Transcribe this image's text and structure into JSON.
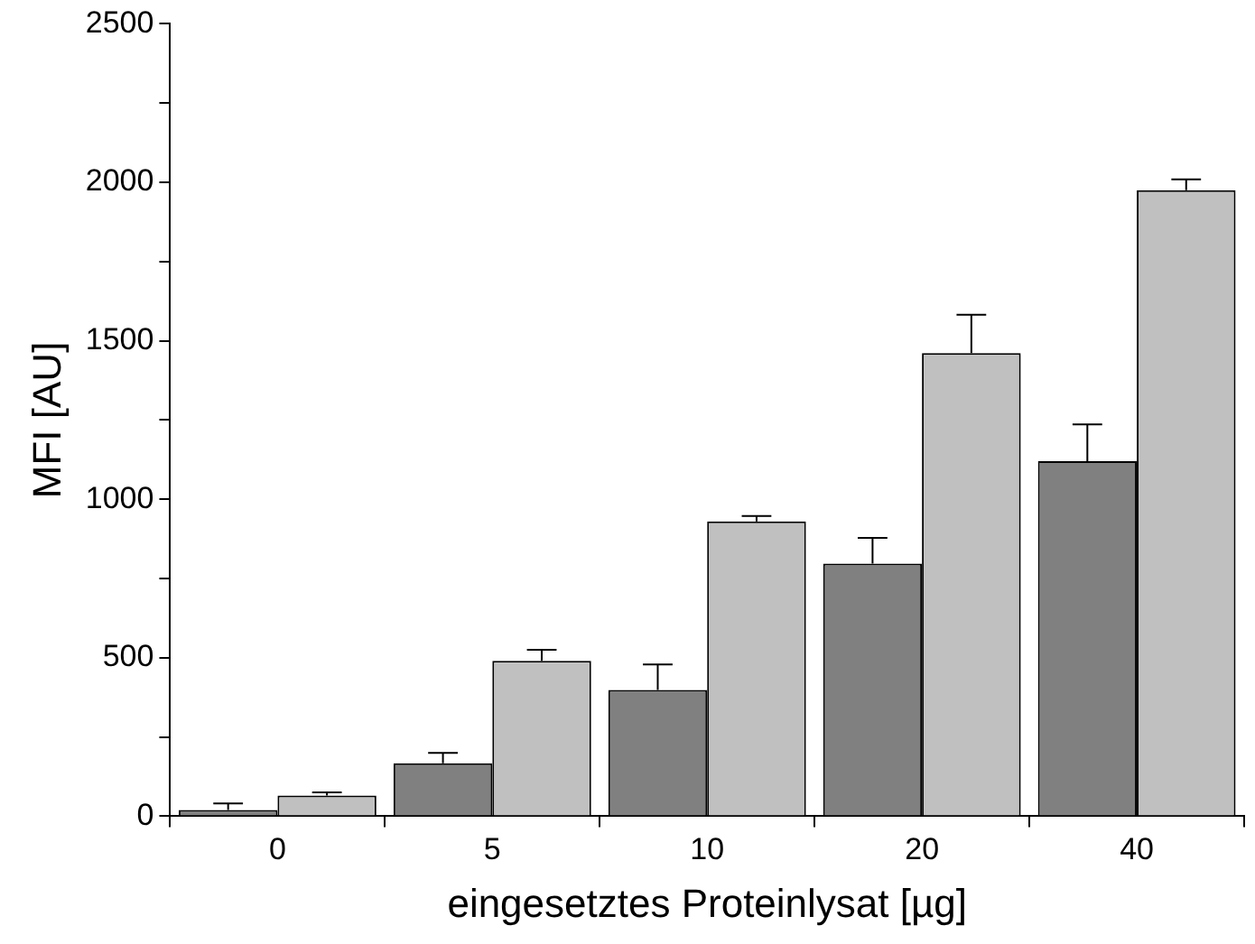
{
  "chart_data": {
    "type": "bar",
    "xlabel": "eingesetztes Proteinlysat [µg]",
    "ylabel": "MFI [AU]",
    "categories": [
      "0",
      "5",
      "10",
      "20",
      "40"
    ],
    "series": [
      {
        "color": "#808080",
        "values": [
          20,
          167,
          398,
          797,
          1120
        ],
        "errors": [
          [
            20,
            40
          ],
          [
            167,
            200
          ],
          [
            398,
            479
          ],
          [
            797,
            878
          ],
          [
            1120,
            1236
          ]
        ]
      },
      {
        "color": "#c0c0c0",
        "values": [
          65,
          490,
          930,
          1461,
          1975
        ],
        "errors": [
          [
            65,
            75
          ],
          [
            490,
            525
          ],
          [
            930,
            947
          ],
          [
            1461,
            1582
          ],
          [
            1975,
            2009
          ]
        ]
      }
    ],
    "ylim": [
      0,
      2500
    ],
    "yticks": [
      0,
      {
        "value": 250,
        "label": null
      },
      500,
      {
        "value": 750,
        "label": null
      },
      1000,
      {
        "value": 1250,
        "label": null
      },
      1500,
      {
        "value": 1750,
        "label": null
      },
      2000,
      {
        "value": 2250,
        "label": null
      },
      2500
    ],
    "grid": false,
    "legend": false
  }
}
